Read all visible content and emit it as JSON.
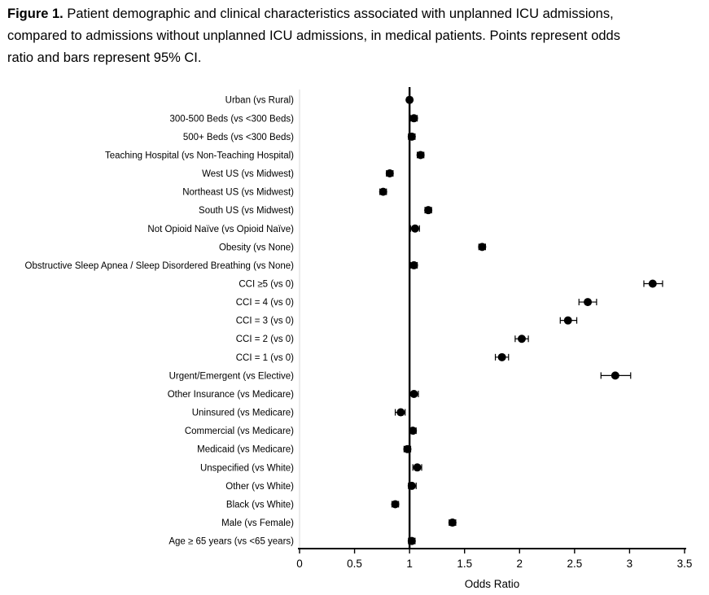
{
  "caption": {
    "label": "Figure 1.",
    "line1": " Patient demographic and clinical characteristics associated with unplanned ICU admissions,",
    "line2": "compared to admissions without unplanned ICU admissions, in medical patients. Points represent odds",
    "line3": "ratio and bars represent 95% CI."
  },
  "chart_data": {
    "type": "scatter",
    "subtype": "forest_plot",
    "title": "",
    "xlabel": "Odds Ratio",
    "ylabel": "",
    "xlim": [
      0,
      3.5
    ],
    "xticks": [
      "0",
      "0.5",
      "1",
      "1.5",
      "2",
      "2.5",
      "3",
      "3.5"
    ],
    "xtick_values": [
      0,
      0.5,
      1,
      1.5,
      2,
      2.5,
      3,
      3.5
    ],
    "reference_line_x": 1,
    "grid": false,
    "legend": "none",
    "point_color": "#000000",
    "axis_color": "#000000",
    "left_axis_color": "#d9d9d9",
    "rows": [
      {
        "label": "Urban (vs Rural)",
        "or": 1.0,
        "ci_low": 0.98,
        "ci_high": 1.02
      },
      {
        "label": "300-500 Beds (vs <300 Beds)",
        "or": 1.04,
        "ci_low": 1.01,
        "ci_high": 1.07
      },
      {
        "label": "500+ Beds (vs <300 Beds)",
        "or": 1.02,
        "ci_low": 0.99,
        "ci_high": 1.05
      },
      {
        "label": "Teaching Hospital (vs Non-Teaching Hospital)",
        "or": 1.1,
        "ci_low": 1.07,
        "ci_high": 1.13
      },
      {
        "label": "West US (vs Midwest)",
        "or": 0.82,
        "ci_low": 0.79,
        "ci_high": 0.85
      },
      {
        "label": "Northeast US (vs Midwest)",
        "or": 0.76,
        "ci_low": 0.73,
        "ci_high": 0.79
      },
      {
        "label": "South US (vs Midwest)",
        "or": 1.17,
        "ci_low": 1.14,
        "ci_high": 1.2
      },
      {
        "label": "Not Opioid Naïve (vs Opioid Naïve)",
        "or": 1.05,
        "ci_low": 1.01,
        "ci_high": 1.09
      },
      {
        "label": "Obesity (vs None)",
        "or": 1.66,
        "ci_low": 1.63,
        "ci_high": 1.69
      },
      {
        "label": "Obstructive Sleep Apnea / Sleep Disordered Breathing (vs None)",
        "or": 1.04,
        "ci_low": 1.01,
        "ci_high": 1.07
      },
      {
        "label": "CCI ≥5 (vs 0)",
        "or": 3.21,
        "ci_low": 3.13,
        "ci_high": 3.3
      },
      {
        "label": "CCI = 4 (vs 0)",
        "or": 2.62,
        "ci_low": 2.54,
        "ci_high": 2.7
      },
      {
        "label": "CCI = 3 (vs 0)",
        "or": 2.44,
        "ci_low": 2.37,
        "ci_high": 2.52
      },
      {
        "label": "CCI = 2 (vs 0)",
        "or": 2.02,
        "ci_low": 1.96,
        "ci_high": 2.08
      },
      {
        "label": "CCI = 1 (vs 0)",
        "or": 1.84,
        "ci_low": 1.78,
        "ci_high": 1.9
      },
      {
        "label": "Urgent/Emergent (vs Elective)",
        "or": 2.87,
        "ci_low": 2.74,
        "ci_high": 3.01
      },
      {
        "label": "Other Insurance (vs Medicare)",
        "or": 1.04,
        "ci_low": 1.0,
        "ci_high": 1.08
      },
      {
        "label": "Uninsured (vs Medicare)",
        "or": 0.92,
        "ci_low": 0.87,
        "ci_high": 0.96
      },
      {
        "label": "Commercial (vs Medicare)",
        "or": 1.03,
        "ci_low": 1.0,
        "ci_high": 1.06
      },
      {
        "label": "Medicaid (vs Medicare)",
        "or": 0.98,
        "ci_low": 0.95,
        "ci_high": 1.01
      },
      {
        "label": "Unspecified (vs White)",
        "or": 1.07,
        "ci_low": 1.03,
        "ci_high": 1.11
      },
      {
        "label": "Other (vs White)",
        "or": 1.02,
        "ci_low": 0.99,
        "ci_high": 1.06
      },
      {
        "label": "Black (vs White)",
        "or": 0.87,
        "ci_low": 0.84,
        "ci_high": 0.9
      },
      {
        "label": "Male (vs Female)",
        "or": 1.39,
        "ci_low": 1.36,
        "ci_high": 1.42
      },
      {
        "label": "Age ≥ 65 years (vs <65 years)",
        "or": 1.02,
        "ci_low": 0.99,
        "ci_high": 1.05
      }
    ]
  }
}
